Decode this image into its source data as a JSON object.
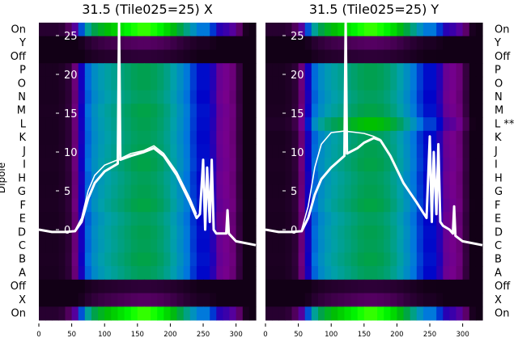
{
  "chart_data": {
    "type": "heatmap",
    "ylabel": "Dipole",
    "row_labels_left": [
      "On",
      "Y",
      "Off",
      "P",
      "O",
      "N",
      "M",
      "L",
      "K",
      "J",
      "I",
      "H",
      "G",
      "F",
      "E",
      "D",
      "C",
      "B",
      "A",
      "Off",
      "X",
      "On"
    ],
    "row_labels_right": [
      "On",
      "Y",
      "Off",
      "P",
      "O",
      "N",
      "M",
      "L **",
      "K",
      "J",
      "I",
      "H",
      "G",
      "F",
      "E",
      "D",
      "C",
      "B",
      "A",
      "Off",
      "X",
      "On"
    ],
    "x_ticks": [
      0,
      50,
      100,
      150,
      200,
      250,
      300
    ],
    "xlim": [
      0,
      330
    ],
    "overlay_ticks": [
      0,
      5,
      10,
      15,
      20,
      25
    ],
    "overlay_ylim": [
      -3,
      26
    ],
    "profile_x": [
      0,
      10,
      20,
      30,
      40,
      50,
      60,
      70,
      80,
      90,
      100,
      110,
      120,
      130,
      140,
      150,
      160,
      170,
      180,
      190,
      200,
      210,
      220,
      230,
      240,
      250,
      260,
      270,
      280,
      290,
      300,
      310,
      320,
      330
    ],
    "profile": [
      0.03,
      0.03,
      0.03,
      0.03,
      0.04,
      0.06,
      0.12,
      0.25,
      0.33,
      0.37,
      0.4,
      0.42,
      0.44,
      0.46,
      0.48,
      0.5,
      0.5,
      0.5,
      0.48,
      0.46,
      0.42,
      0.38,
      0.33,
      0.28,
      0.22,
      0.2,
      0.22,
      0.12,
      0.11,
      0.1,
      0.08,
      0.03,
      0.01,
      0.0
    ],
    "panels": [
      {
        "title": "31.5 (Tile025=25) X",
        "row_gains": [
          1.45,
          0.15,
          0.1,
          1,
          1,
          0.97,
          1.02,
          1,
          0.98,
          1,
          1.02,
          0.98,
          1,
          1.03,
          0.97,
          1,
          0.99,
          1.02,
          0.98,
          0.1,
          0.15,
          1.45
        ],
        "lines": [
          {
            "x": [
              0,
              20,
              40,
              55,
              65,
              75,
              85,
              100,
              120,
              122,
              124,
              140,
              160,
              175,
              190,
              210,
              230,
              240,
              245,
              250,
              253,
              256,
              260,
              263,
              266,
              270,
              285,
              287,
              289,
              300,
              330
            ],
            "y": [
              0,
              -0.3,
              -0.3,
              -0.2,
              1,
              4,
              6,
              7.5,
              8.5,
              27,
              9,
              9.5,
              10,
              10.5,
              9.5,
              7,
              3.5,
              1.5,
              2,
              9,
              0,
              8,
              1,
              9,
              0,
              -0.5,
              -0.5,
              2.5,
              -0.5,
              -1.5,
              -2
            ]
          },
          {
            "x": [
              55,
              65,
              75,
              85,
              100,
              120,
              140,
              160,
              175,
              190,
              210,
              230,
              240
            ],
            "y": [
              -0.1,
              1.5,
              5,
              7,
              8.3,
              9,
              9.8,
              10.2,
              10.8,
              9.8,
              7.4,
              4,
              2
            ]
          }
        ]
      },
      {
        "title": "31.5 (Tile025=25) Y",
        "row_gains": [
          1.45,
          0.15,
          0.1,
          1,
          1,
          0.97,
          1.02,
          1.2,
          0.98,
          1,
          1.02,
          0.98,
          1,
          1.03,
          0.97,
          1,
          0.99,
          1.02,
          0.98,
          0.1,
          0.15,
          1.45
        ],
        "lines": [
          {
            "x": [
              0,
              20,
              40,
              55,
              65,
              75,
              85,
              100,
              120,
              122,
              124,
              140,
              150,
              165,
              175,
              190,
              210,
              230,
              245,
              250,
              253,
              256,
              260,
              263,
              266,
              270,
              280,
              285,
              287,
              289,
              300,
              330
            ],
            "y": [
              0,
              -0.3,
              -0.3,
              -0.2,
              1.5,
              4.5,
              6.5,
              8,
              9.5,
              27,
              9.8,
              10.5,
              11.2,
              11.8,
              11.5,
              9.5,
              6,
              3.5,
              1.5,
              12,
              1,
              10,
              2,
              11,
              1,
              0.5,
              0,
              -0.5,
              3,
              -0.8,
              -1.5,
              -2
            ]
          },
          {
            "x": [
              55,
              65,
              75,
              85,
              100,
              120,
              140,
              150,
              165,
              175
            ],
            "y": [
              0,
              3,
              8,
              11,
              12.5,
              12.7,
              12.5,
              12.4,
              12,
              11.6
            ]
          }
        ]
      }
    ]
  }
}
